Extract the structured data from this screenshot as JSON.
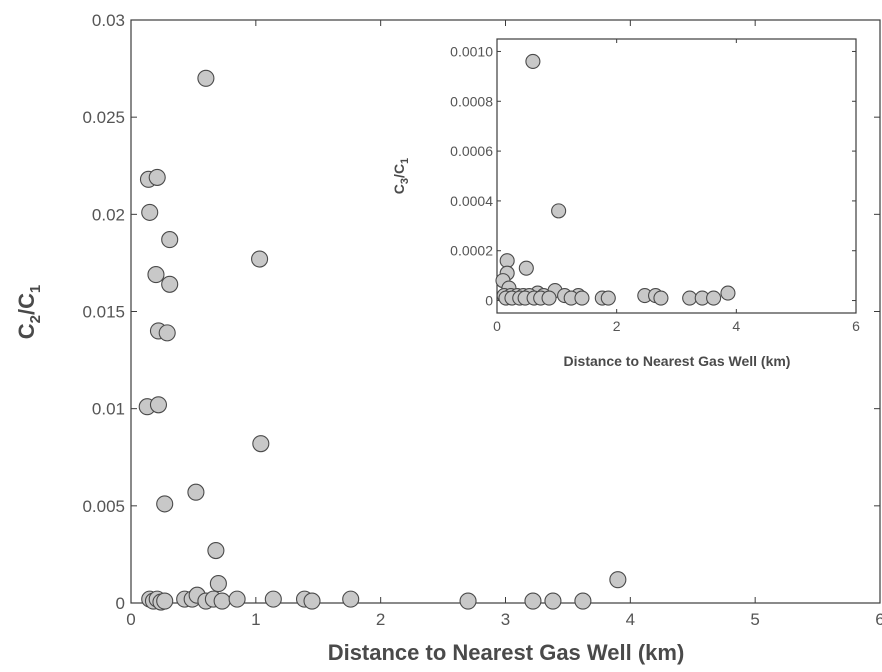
{
  "chart_data": [
    {
      "type": "scatter",
      "title": "",
      "xlabel": "Distance to Nearest Gas Well (km)",
      "ylabel_main": "C",
      "ylabel_sub1": "2",
      "ylabel_mid": "/C",
      "ylabel_sub2": "1",
      "xlim": [
        0,
        6
      ],
      "ylim": [
        0,
        0.03
      ],
      "xticks": [
        "0",
        "1",
        "2",
        "3",
        "4",
        "5",
        "6"
      ],
      "yticks": [
        "0",
        "0.005",
        "0.01",
        "0.015",
        "0.02",
        "0.025",
        "0.03"
      ],
      "grid": false,
      "marker_fill": "#c8c8c8",
      "marker_edge": "#4a4a4a",
      "points": [
        [
          0.6,
          0.027
        ],
        [
          0.14,
          0.0218
        ],
        [
          0.21,
          0.0219
        ],
        [
          0.15,
          0.0201
        ],
        [
          0.31,
          0.0187
        ],
        [
          1.03,
          0.0177
        ],
        [
          0.2,
          0.0169
        ],
        [
          0.31,
          0.0164
        ],
        [
          0.22,
          0.014
        ],
        [
          0.29,
          0.0139
        ],
        [
          0.13,
          0.0101
        ],
        [
          0.22,
          0.0102
        ],
        [
          1.04,
          0.0082
        ],
        [
          0.52,
          0.0057
        ],
        [
          0.27,
          0.0051
        ],
        [
          0.68,
          0.0027
        ],
        [
          0.7,
          0.001
        ],
        [
          3.9,
          0.0012
        ],
        [
          0.15,
          0.0002
        ],
        [
          0.18,
          0.0001
        ],
        [
          0.21,
          0.0002
        ],
        [
          0.24,
          5e-05
        ],
        [
          0.27,
          0.0001
        ],
        [
          0.43,
          0.0002
        ],
        [
          0.49,
          0.0002
        ],
        [
          0.53,
          0.0004
        ],
        [
          0.6,
          0.0001
        ],
        [
          0.66,
          0.0002
        ],
        [
          0.73,
          0.0001
        ],
        [
          0.85,
          0.0002
        ],
        [
          1.14,
          0.0002
        ],
        [
          1.39,
          0.0002
        ],
        [
          1.45,
          0.0001
        ],
        [
          1.76,
          0.0002
        ],
        [
          2.7,
          0.0001
        ],
        [
          3.22,
          0.0001
        ],
        [
          3.38,
          0.0001
        ],
        [
          3.62,
          0.0001
        ]
      ]
    },
    {
      "type": "scatter",
      "title": "",
      "xlabel": "Distance to Nearest Gas Well (km)",
      "ylabel_main": "C",
      "ylabel_sub1": "3",
      "ylabel_mid": "/C",
      "ylabel_sub2": "1",
      "xlim": [
        0,
        6
      ],
      "ylim": [
        -5e-05,
        0.00105
      ],
      "xticks": [
        "0",
        "2",
        "4",
        "6"
      ],
      "yticks": [
        "0",
        "0.0002",
        "0.0004",
        "0.0006",
        "0.0008",
        "0.0010"
      ],
      "grid": false,
      "legend_position": "top-right inset",
      "points": [
        [
          0.6,
          0.00096
        ],
        [
          1.03,
          0.00036
        ],
        [
          0.17,
          0.00016
        ],
        [
          0.49,
          0.00013
        ],
        [
          0.17,
          0.00011
        ],
        [
          0.1,
          8e-05
        ],
        [
          0.2,
          5e-05
        ],
        [
          0.97,
          4e-05
        ],
        [
          0.68,
          3e-05
        ],
        [
          3.86,
          3e-05
        ],
        [
          0.12,
          2e-05
        ],
        [
          0.23,
          2e-05
        ],
        [
          0.34,
          2e-05
        ],
        [
          0.44,
          2e-05
        ],
        [
          0.54,
          2e-05
        ],
        [
          0.78,
          2e-05
        ],
        [
          1.13,
          2e-05
        ],
        [
          1.36,
          2e-05
        ],
        [
          2.47,
          2e-05
        ],
        [
          2.65,
          2e-05
        ],
        [
          0.15,
          1e-05
        ],
        [
          0.25,
          1e-05
        ],
        [
          0.38,
          1e-05
        ],
        [
          0.47,
          1e-05
        ],
        [
          0.62,
          1e-05
        ],
        [
          0.73,
          1e-05
        ],
        [
          0.87,
          1e-05
        ],
        [
          1.24,
          1e-05
        ],
        [
          1.42,
          1e-05
        ],
        [
          1.76,
          1e-05
        ],
        [
          1.86,
          1e-05
        ],
        [
          2.74,
          1e-05
        ],
        [
          3.22,
          1e-05
        ],
        [
          3.43,
          1e-05
        ],
        [
          3.62,
          1e-05
        ]
      ]
    }
  ]
}
